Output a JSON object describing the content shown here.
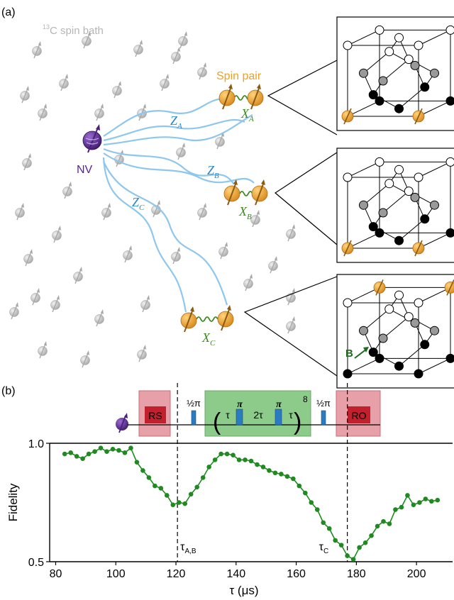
{
  "panel_a": {
    "label": "(a)",
    "bath_label_sup": "13",
    "bath_label": "C spin bath",
    "pair_label": "Spin pair",
    "nv_label": "NV",
    "couplings": [
      {
        "z": "Z",
        "z_sub": "A",
        "x": "X",
        "x_sub": "A"
      },
      {
        "z": "Z",
        "z_sub": "B",
        "x": "X",
        "x_sub": "B"
      },
      {
        "z": "Z",
        "z_sub": "C",
        "x": "X",
        "x_sub": "C"
      }
    ],
    "field_label": "B",
    "colors": {
      "bath_spin": "#b9b9b9",
      "pair_spin": "#f0a020",
      "nv_spin": "#5a2d8c",
      "coupling_line": "#8ec7ee",
      "z_label": "#2a86c8",
      "x_label": "#3a8a1e",
      "field": "#1d6b1d"
    }
  },
  "panel_b": {
    "label": "(b)",
    "sequence": {
      "rs": "RS",
      "ro": "RO",
      "half_pi_left": "½π",
      "half_pi_right": "½π",
      "tau_left": "τ",
      "pi_1": "π",
      "two_tau": "2τ",
      "pi_2": "π",
      "tau_right": "τ",
      "power": "8",
      "colors": {
        "ro_block": "#e8a0a8",
        "ro_inner": "#c3202e",
        "dd_block": "#8ccb8a",
        "pulse": "#2b7bc0"
      }
    }
  },
  "chart_data": {
    "type": "line",
    "xlabel": "τ (μs)",
    "ylabel": "Fidelity",
    "xlim": [
      78,
      212
    ],
    "ylim": [
      0.5,
      1.0
    ],
    "xticks": [
      80,
      100,
      120,
      140,
      160,
      180,
      200
    ],
    "xtick_labels": [
      "80",
      "100",
      "120",
      "140",
      "160",
      "180",
      "200"
    ],
    "yticks": [
      0.5,
      1.0
    ],
    "ytick_labels": [
      "0.5",
      "1.0"
    ],
    "vlines": [
      {
        "x": 120.5,
        "label": "τ",
        "sub": "A,B"
      },
      {
        "x": 177,
        "label": "τ",
        "sub": "C"
      }
    ],
    "color": "#1f8a1f",
    "series": [
      {
        "x": [
          83,
          85,
          87,
          89,
          91,
          93,
          95,
          97,
          99,
          101,
          103,
          105,
          107,
          109,
          111,
          113,
          115,
          117,
          119,
          121,
          123,
          125,
          127,
          129,
          131,
          133,
          135,
          137,
          139,
          141,
          143,
          145,
          147,
          149,
          151,
          153,
          155,
          157,
          159,
          161,
          163,
          165,
          167,
          169,
          171,
          173,
          175,
          177,
          179,
          181,
          183,
          185,
          187,
          189,
          191,
          193,
          195,
          197,
          199,
          201,
          203,
          205,
          207
        ],
        "y": [
          0.955,
          0.96,
          0.945,
          0.935,
          0.955,
          0.965,
          0.98,
          0.965,
          0.975,
          0.97,
          0.96,
          0.98,
          0.92,
          0.885,
          0.855,
          0.82,
          0.81,
          0.78,
          0.74,
          0.75,
          0.745,
          0.785,
          0.815,
          0.855,
          0.9,
          0.93,
          0.955,
          0.955,
          0.95,
          0.93,
          0.93,
          0.925,
          0.91,
          0.9,
          0.885,
          0.875,
          0.87,
          0.86,
          0.85,
          0.82,
          0.79,
          0.75,
          0.72,
          0.665,
          0.64,
          0.59,
          0.57,
          0.525,
          0.51,
          0.56,
          0.58,
          0.61,
          0.65,
          0.67,
          0.66,
          0.72,
          0.73,
          0.78,
          0.74,
          0.75,
          0.765,
          0.755,
          0.76
        ]
      }
    ]
  }
}
